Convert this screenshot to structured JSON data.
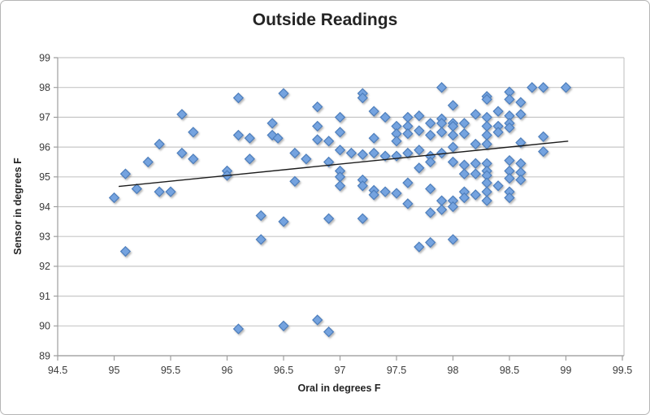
{
  "chart_data": {
    "type": "scatter",
    "title": "Outside Readings",
    "xlabel": "Oral in degrees F",
    "ylabel": "Sensor in degrees F",
    "xlim": [
      94.5,
      99.5
    ],
    "ylim": [
      89,
      99
    ],
    "x_ticks": [
      94.5,
      95,
      95.5,
      96,
      96.5,
      97,
      97.5,
      98,
      98.5,
      99,
      99.5
    ],
    "x_tick_labels": [
      "94.5",
      "95",
      "95.5",
      "96",
      "96.5",
      "97",
      "97.5",
      "98",
      "98.5",
      "99",
      "99.5"
    ],
    "y_ticks": [
      89,
      90,
      91,
      92,
      93,
      94,
      95,
      96,
      97,
      98,
      99
    ],
    "y_tick_labels": [
      "89",
      "90",
      "91",
      "92",
      "93",
      "94",
      "95",
      "96",
      "97",
      "98",
      "99"
    ],
    "grid": "horizontal",
    "legend": "none",
    "marker": "diamond",
    "points": [
      [
        95.0,
        94.3
      ],
      [
        95.1,
        95.1
      ],
      [
        95.1,
        92.5
      ],
      [
        95.2,
        94.6
      ],
      [
        95.3,
        95.5
      ],
      [
        95.4,
        96.1
      ],
      [
        95.4,
        94.5
      ],
      [
        95.5,
        94.5
      ],
      [
        95.6,
        97.1
      ],
      [
        95.6,
        95.8
      ],
      [
        95.7,
        96.5
      ],
      [
        95.7,
        95.6
      ],
      [
        96.0,
        95.2
      ],
      [
        96.0,
        95.05
      ],
      [
        96.1,
        97.65
      ],
      [
        96.1,
        96.4
      ],
      [
        96.1,
        89.9
      ],
      [
        96.2,
        96.3
      ],
      [
        96.2,
        95.6
      ],
      [
        96.3,
        93.7
      ],
      [
        96.3,
        92.9
      ],
      [
        96.4,
        96.8
      ],
      [
        96.4,
        96.4
      ],
      [
        96.45,
        96.3
      ],
      [
        96.5,
        97.8
      ],
      [
        96.5,
        93.5
      ],
      [
        96.5,
        90.0
      ],
      [
        96.6,
        95.8
      ],
      [
        96.6,
        94.85
      ],
      [
        96.7,
        95.6
      ],
      [
        96.8,
        97.35
      ],
      [
        96.8,
        96.7
      ],
      [
        96.8,
        96.25
      ],
      [
        96.8,
        90.2
      ],
      [
        96.9,
        96.2
      ],
      [
        96.9,
        95.5
      ],
      [
        96.9,
        93.6
      ],
      [
        96.9,
        89.8
      ],
      [
        97.0,
        97.0
      ],
      [
        97.0,
        96.5
      ],
      [
        97.0,
        95.9
      ],
      [
        97.0,
        95.2
      ],
      [
        97.0,
        95.0
      ],
      [
        97.0,
        94.7
      ],
      [
        97.1,
        95.8
      ],
      [
        97.2,
        97.8
      ],
      [
        97.2,
        97.65
      ],
      [
        97.2,
        95.75
      ],
      [
        97.2,
        94.9
      ],
      [
        97.2,
        94.7
      ],
      [
        97.2,
        93.6
      ],
      [
        97.3,
        97.2
      ],
      [
        97.3,
        96.3
      ],
      [
        97.3,
        95.8
      ],
      [
        97.3,
        94.55
      ],
      [
        97.3,
        94.4
      ],
      [
        97.4,
        97.0
      ],
      [
        97.4,
        95.7
      ],
      [
        97.4,
        94.5
      ],
      [
        97.5,
        96.7
      ],
      [
        97.5,
        96.45
      ],
      [
        97.5,
        96.2
      ],
      [
        97.5,
        95.7
      ],
      [
        97.5,
        94.45
      ],
      [
        97.6,
        97.0
      ],
      [
        97.6,
        96.7
      ],
      [
        97.6,
        96.45
      ],
      [
        97.6,
        95.8
      ],
      [
        97.6,
        94.8
      ],
      [
        97.6,
        94.1
      ],
      [
        97.7,
        97.05
      ],
      [
        97.7,
        96.55
      ],
      [
        97.7,
        95.9
      ],
      [
        97.7,
        95.3
      ],
      [
        97.7,
        92.65
      ],
      [
        97.8,
        96.8
      ],
      [
        97.8,
        96.4
      ],
      [
        97.8,
        95.7
      ],
      [
        97.8,
        95.5
      ],
      [
        97.8,
        94.6
      ],
      [
        97.8,
        93.8
      ],
      [
        97.8,
        92.8
      ],
      [
        97.9,
        98.0
      ],
      [
        97.9,
        96.95
      ],
      [
        97.9,
        96.8
      ],
      [
        97.9,
        96.5
      ],
      [
        97.9,
        95.8
      ],
      [
        97.9,
        94.2
      ],
      [
        97.9,
        93.9
      ],
      [
        98.0,
        97.4
      ],
      [
        98.0,
        96.8
      ],
      [
        98.0,
        96.7
      ],
      [
        98.0,
        96.4
      ],
      [
        98.0,
        96.0
      ],
      [
        98.0,
        95.5
      ],
      [
        98.0,
        94.2
      ],
      [
        98.0,
        94.0
      ],
      [
        98.0,
        92.9
      ],
      [
        98.1,
        96.8
      ],
      [
        98.1,
        96.45
      ],
      [
        98.1,
        95.4
      ],
      [
        98.1,
        95.1
      ],
      [
        98.1,
        94.5
      ],
      [
        98.1,
        94.3
      ],
      [
        98.2,
        97.1
      ],
      [
        98.2,
        96.1
      ],
      [
        98.2,
        95.45
      ],
      [
        98.2,
        95.1
      ],
      [
        98.2,
        94.4
      ],
      [
        98.3,
        97.7
      ],
      [
        98.3,
        97.6
      ],
      [
        98.3,
        97.0
      ],
      [
        98.3,
        96.7
      ],
      [
        98.3,
        96.4
      ],
      [
        98.3,
        96.1
      ],
      [
        98.3,
        95.45
      ],
      [
        98.3,
        95.2
      ],
      [
        98.3,
        95.05
      ],
      [
        98.3,
        94.8
      ],
      [
        98.3,
        94.5
      ],
      [
        98.3,
        94.2
      ],
      [
        98.4,
        97.2
      ],
      [
        98.4,
        96.7
      ],
      [
        98.4,
        96.5
      ],
      [
        98.4,
        94.7
      ],
      [
        98.5,
        97.85
      ],
      [
        98.5,
        97.6
      ],
      [
        98.5,
        97.05
      ],
      [
        98.5,
        96.8
      ],
      [
        98.5,
        96.65
      ],
      [
        98.5,
        95.55
      ],
      [
        98.5,
        95.2
      ],
      [
        98.5,
        94.95
      ],
      [
        98.5,
        94.5
      ],
      [
        98.5,
        94.3
      ],
      [
        98.6,
        97.5
      ],
      [
        98.6,
        97.1
      ],
      [
        98.6,
        96.15
      ],
      [
        98.6,
        95.45
      ],
      [
        98.6,
        95.15
      ],
      [
        98.6,
        94.9
      ],
      [
        98.7,
        98.0
      ],
      [
        98.8,
        98.0
      ],
      [
        98.8,
        96.35
      ],
      [
        98.8,
        95.85
      ],
      [
        99.0,
        98.0
      ]
    ],
    "trendline": {
      "x1": 95.04,
      "y1": 94.68,
      "x2": 99.02,
      "y2": 96.2
    },
    "colors": {
      "marker_fill": "#74A3DF",
      "marker_stroke": "#4D7EBC",
      "gridline": "#C7C7C7",
      "axis": "#9E9E9E",
      "tick_text": "#3A3A3A",
      "title_text": "#242424",
      "trendline": "#1C1C1C",
      "window_border": "#B5B5B5",
      "background": "#FFFFFF"
    }
  }
}
